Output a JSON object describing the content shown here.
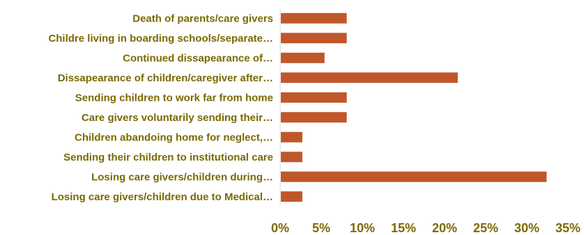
{
  "chart_data": {
    "type": "bar",
    "orientation": "horizontal",
    "categories": [
      "Death of parents/care givers",
      "Childre living in boarding schools/separate…",
      "Continued dissapearance of…",
      "Dissapearance of children/caregiver after…",
      "Sending children to work far from home",
      "Care givers voluntarily sending their…",
      "Children abandoing home for neglect,…",
      "Sending their children to institutional care",
      "Losing care givers/children during…",
      "Losing care givers/children due to Medical…"
    ],
    "values": [
      8.1,
      8.1,
      5.4,
      21.6,
      8.1,
      8.1,
      2.7,
      2.7,
      32.4,
      2.7
    ],
    "xlim": [
      0,
      35
    ],
    "tick_labels": [
      "0%",
      "5%",
      "10%",
      "15%",
      "20%",
      "25%",
      "30%",
      "35%"
    ],
    "bar_color": "#c0572a",
    "label_color": "#7a6a00",
    "grid": false,
    "title": "",
    "xlabel": "",
    "ylabel": ""
  }
}
